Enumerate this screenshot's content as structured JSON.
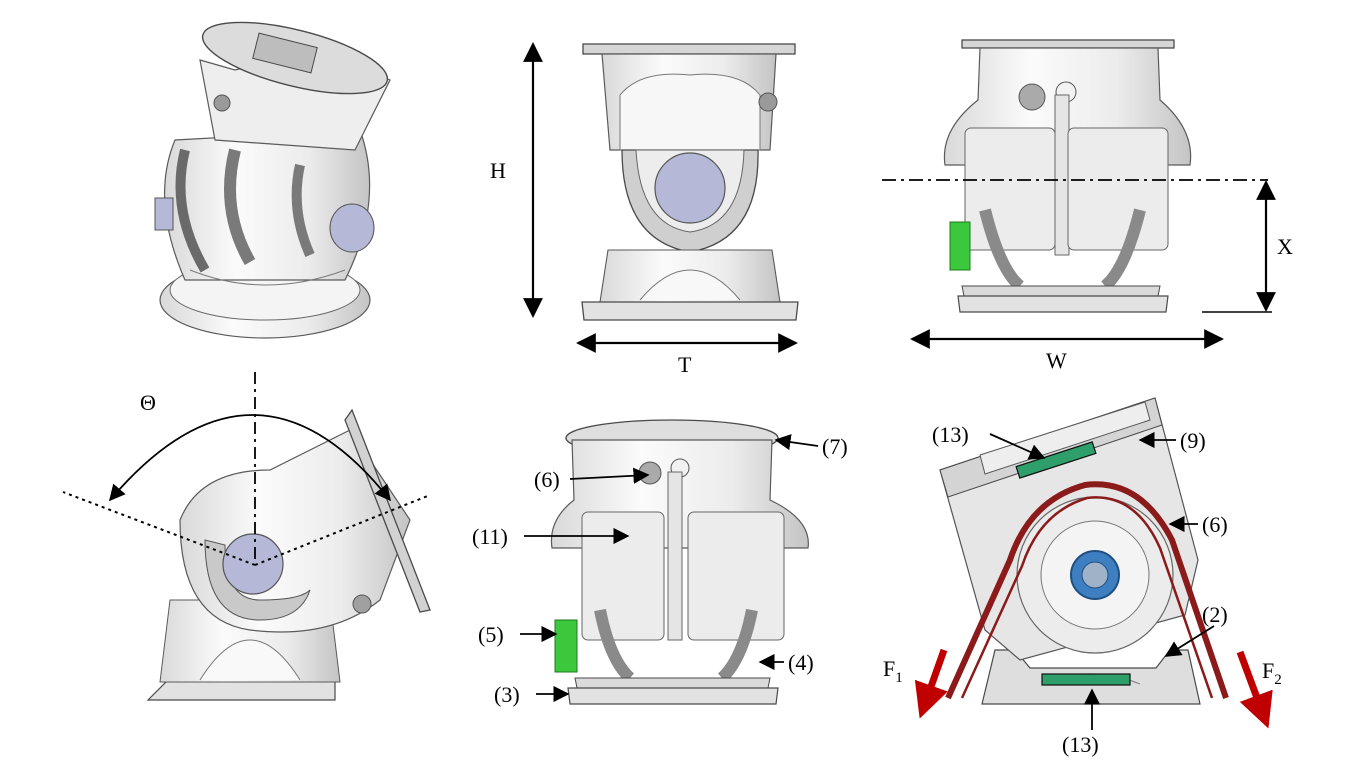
{
  "dimensions": {
    "height": "H",
    "thickness": "T",
    "width": "W",
    "offset": "X",
    "angle": "Θ"
  },
  "callouts": {
    "c2": "(2)",
    "c3": "(3)",
    "c4": "(4)",
    "c5": "(5)",
    "c6_view": "(6)",
    "c6_section": "(6)",
    "c7": "(7)",
    "c9": "(9)",
    "c11": "(11)",
    "c13_top": "(13)",
    "c13_bottom": "(13)"
  },
  "forces": {
    "f1_letter": "F",
    "f1_sub": "1",
    "f2_letter": "F",
    "f2_sub": "2"
  },
  "colors": {
    "body_fill": "#f2f2f2",
    "body_stroke": "#5a5a5a",
    "shadow": "#c8c8c8",
    "bearing": "#b5b8d6",
    "cable": "#8b1a1a",
    "sensor": "#2e9e6a",
    "green_part": "#3cc83c",
    "force_arrow": "#c00000",
    "hub_blue": "#3d7fc1"
  }
}
